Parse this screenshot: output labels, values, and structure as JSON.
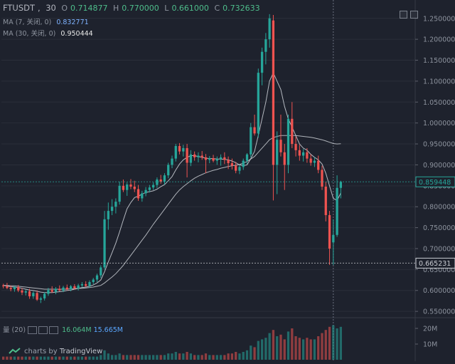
{
  "header": {
    "symbol": "FTUSDT",
    "interval": "30",
    "o_label": "O",
    "o_value": "0.714877",
    "h_label": "H",
    "h_value": "0.770000",
    "l_label": "L",
    "l_value": "0.661000",
    "c_label": "C",
    "c_value": "0.732633",
    "ma7_label": "MA (7, 关闭, 0)",
    "ma7_value": "0.832771",
    "ma30_label": "MA (30, 关闭, 0)",
    "ma30_value": "0.950444"
  },
  "volume_header": {
    "label": "量 (20)",
    "value_a": "16.064M",
    "value_b": "15.665M"
  },
  "watermark": {
    "prefix": "charts by",
    "brand": "TradingView"
  },
  "colors": {
    "background": "#1e222d",
    "up": "#26a69a",
    "down": "#ef5350",
    "ma7": "#d0d3da",
    "ma30": "#c9ccd2",
    "grid": "#2a2e39",
    "axis_text": "#8d939e",
    "price_label_bg": "#1e222d"
  },
  "chart_data": {
    "type": "candlestick",
    "y_axis_ticks": [
      "1.250000",
      "1.200000",
      "1.150000",
      "1.100000",
      "1.050000",
      "1.000000",
      "0.950000",
      "0.900000",
      "0.850000",
      "0.800000",
      "0.750000",
      "0.700000",
      "0.650000",
      "0.600000",
      "0.550000"
    ],
    "ylim": [
      0.54,
      1.27
    ],
    "price_labels": [
      {
        "value": 0.859448,
        "text": "0.859448",
        "color": "#26a69a"
      },
      {
        "value": 0.665231,
        "text": "0.665231",
        "color": "#c9ccd2"
      }
    ],
    "volume_axis_ticks": [
      "20M",
      "10M"
    ],
    "volume_ylim": [
      0,
      25
    ],
    "candles": [
      [
        0.612,
        0.616,
        0.605,
        0.61
      ],
      [
        0.61,
        0.618,
        0.603,
        0.606
      ],
      [
        0.606,
        0.612,
        0.598,
        0.603
      ],
      [
        0.603,
        0.611,
        0.597,
        0.608
      ],
      [
        0.608,
        0.613,
        0.596,
        0.6
      ],
      [
        0.6,
        0.606,
        0.589,
        0.595
      ],
      [
        0.595,
        0.602,
        0.588,
        0.598
      ],
      [
        0.598,
        0.604,
        0.58,
        0.586
      ],
      [
        0.586,
        0.598,
        0.58,
        0.594
      ],
      [
        0.594,
        0.6,
        0.575,
        0.578
      ],
      [
        0.578,
        0.585,
        0.57,
        0.581
      ],
      [
        0.581,
        0.596,
        0.576,
        0.592
      ],
      [
        0.592,
        0.606,
        0.587,
        0.601
      ],
      [
        0.601,
        0.61,
        0.594,
        0.597
      ],
      [
        0.597,
        0.608,
        0.591,
        0.604
      ],
      [
        0.604,
        0.612,
        0.598,
        0.6
      ],
      [
        0.6,
        0.611,
        0.596,
        0.607
      ],
      [
        0.607,
        0.614,
        0.6,
        0.603
      ],
      [
        0.603,
        0.613,
        0.598,
        0.61
      ],
      [
        0.61,
        0.615,
        0.602,
        0.605
      ],
      [
        0.605,
        0.616,
        0.6,
        0.612
      ],
      [
        0.612,
        0.62,
        0.607,
        0.615
      ],
      [
        0.615,
        0.622,
        0.608,
        0.611
      ],
      [
        0.611,
        0.624,
        0.606,
        0.62
      ],
      [
        0.62,
        0.63,
        0.615,
        0.626
      ],
      [
        0.626,
        0.64,
        0.62,
        0.636
      ],
      [
        0.636,
        0.66,
        0.63,
        0.655
      ],
      [
        0.655,
        0.79,
        0.65,
        0.77
      ],
      [
        0.77,
        0.81,
        0.745,
        0.79
      ],
      [
        0.79,
        0.818,
        0.78,
        0.8
      ],
      [
        0.8,
        0.82,
        0.784,
        0.812
      ],
      [
        0.812,
        0.86,
        0.805,
        0.85
      ],
      [
        0.85,
        0.865,
        0.835,
        0.84
      ],
      [
        0.84,
        0.858,
        0.826,
        0.853
      ],
      [
        0.853,
        0.866,
        0.842,
        0.848
      ],
      [
        0.848,
        0.862,
        0.835,
        0.842
      ],
      [
        0.842,
        0.852,
        0.814,
        0.82
      ],
      [
        0.82,
        0.838,
        0.812,
        0.832
      ],
      [
        0.832,
        0.847,
        0.825,
        0.84
      ],
      [
        0.84,
        0.852,
        0.834,
        0.846
      ],
      [
        0.846,
        0.858,
        0.84,
        0.852
      ],
      [
        0.852,
        0.87,
        0.845,
        0.865
      ],
      [
        0.865,
        0.876,
        0.855,
        0.86
      ],
      [
        0.86,
        0.88,
        0.853,
        0.875
      ],
      [
        0.875,
        0.905,
        0.868,
        0.9
      ],
      [
        0.9,
        0.922,
        0.892,
        0.915
      ],
      [
        0.915,
        0.95,
        0.908,
        0.945
      ],
      [
        0.945,
        0.952,
        0.925,
        0.932
      ],
      [
        0.932,
        0.948,
        0.92,
        0.94
      ],
      [
        0.94,
        0.95,
        0.87,
        0.905
      ],
      [
        0.905,
        0.935,
        0.897,
        0.925
      ],
      [
        0.925,
        0.932,
        0.91,
        0.918
      ],
      [
        0.918,
        0.93,
        0.906,
        0.922
      ],
      [
        0.922,
        0.933,
        0.912,
        0.918
      ],
      [
        0.918,
        0.926,
        0.88,
        0.912
      ],
      [
        0.912,
        0.921,
        0.904,
        0.916
      ],
      [
        0.916,
        0.924,
        0.906,
        0.91
      ],
      [
        0.91,
        0.92,
        0.9,
        0.914
      ],
      [
        0.914,
        0.925,
        0.898,
        0.918
      ],
      [
        0.918,
        0.93,
        0.902,
        0.912
      ],
      [
        0.912,
        0.92,
        0.89,
        0.904
      ],
      [
        0.904,
        0.915,
        0.889,
        0.898
      ],
      [
        0.898,
        0.907,
        0.88,
        0.886
      ],
      [
        0.886,
        0.9,
        0.878,
        0.895
      ],
      [
        0.895,
        0.915,
        0.888,
        0.91
      ],
      [
        0.91,
        0.928,
        0.902,
        0.925
      ],
      [
        0.925,
        1.0,
        0.918,
        0.99
      ],
      [
        0.99,
        1.02,
        0.97,
        0.975
      ],
      [
        0.975,
        1.13,
        0.965,
        1.12
      ],
      [
        1.12,
        1.18,
        1.09,
        1.17
      ],
      [
        1.17,
        1.215,
        1.14,
        1.2
      ],
      [
        1.2,
        1.26,
        1.18,
        1.25
      ],
      [
        1.245,
        1.258,
        0.815,
        0.9
      ],
      [
        0.9,
        0.98,
        0.83,
        0.96
      ],
      [
        0.96,
        1.02,
        0.92,
        0.93
      ],
      [
        0.93,
        0.95,
        0.84,
        0.9
      ],
      [
        0.9,
        1.02,
        0.88,
        1.01
      ],
      [
        1.01,
        1.05,
        0.94,
        0.95
      ],
      [
        0.95,
        0.968,
        0.92,
        0.935
      ],
      [
        0.935,
        0.948,
        0.91,
        0.922
      ],
      [
        0.922,
        0.938,
        0.908,
        0.93
      ],
      [
        0.93,
        0.94,
        0.905,
        0.915
      ],
      [
        0.915,
        0.925,
        0.898,
        0.905
      ],
      [
        0.905,
        0.918,
        0.895,
        0.91
      ],
      [
        0.91,
        0.922,
        0.88,
        0.888
      ],
      [
        0.888,
        0.898,
        0.84,
        0.848
      ],
      [
        0.848,
        0.86,
        0.765,
        0.78
      ],
      [
        0.78,
        0.79,
        0.661,
        0.7
      ],
      [
        0.714877,
        0.77,
        0.661,
        0.732633
      ],
      [
        0.732633,
        0.875,
        0.728,
        0.845
      ],
      [
        0.845,
        0.862,
        0.82,
        0.859448
      ]
    ],
    "volumes": [
      2,
      2,
      2,
      2,
      2,
      2,
      2,
      2,
      2,
      2,
      2,
      2,
      2,
      2,
      2,
      2,
      2,
      2,
      2,
      2,
      2,
      2,
      2,
      2,
      2,
      2,
      3,
      6,
      4,
      3,
      3,
      4,
      3,
      3,
      3,
      3,
      3,
      3,
      3,
      3,
      3,
      3,
      3,
      3,
      4,
      4,
      5,
      4,
      4,
      5,
      4,
      3,
      3,
      3,
      4,
      3,
      3,
      3,
      3,
      3,
      4,
      4,
      5,
      4,
      5,
      6,
      9,
      8,
      12,
      13,
      14,
      17,
      19,
      15,
      16,
      13,
      18,
      20,
      15,
      14,
      13,
      14,
      13,
      13,
      15,
      17,
      19,
      21,
      22,
      20,
      21
    ],
    "ma7": [
      0.612,
      0.611,
      0.609,
      0.608,
      0.607,
      0.605,
      0.603,
      0.601,
      0.6,
      0.598,
      0.596,
      0.595,
      0.595,
      0.595,
      0.596,
      0.597,
      0.598,
      0.6,
      0.601,
      0.603,
      0.605,
      0.607,
      0.608,
      0.61,
      0.613,
      0.618,
      0.625,
      0.645,
      0.668,
      0.69,
      0.713,
      0.74,
      0.768,
      0.795,
      0.81,
      0.822,
      0.825,
      0.83,
      0.834,
      0.836,
      0.838,
      0.842,
      0.848,
      0.853,
      0.862,
      0.872,
      0.888,
      0.902,
      0.912,
      0.918,
      0.922,
      0.922,
      0.92,
      0.918,
      0.916,
      0.915,
      0.915,
      0.914,
      0.914,
      0.913,
      0.912,
      0.909,
      0.905,
      0.9,
      0.898,
      0.9,
      0.915,
      0.932,
      0.97,
      1.01,
      1.05,
      1.1,
      1.12,
      1.1,
      1.08,
      1.04,
      1.01,
      0.99,
      0.97,
      0.95,
      0.94,
      0.935,
      0.925,
      0.918,
      0.912,
      0.902,
      0.88,
      0.85,
      0.82,
      0.815,
      0.832771
    ],
    "ma30": [
      0.612,
      0.612,
      0.611,
      0.611,
      0.61,
      0.609,
      0.608,
      0.607,
      0.606,
      0.605,
      0.604,
      0.603,
      0.603,
      0.603,
      0.603,
      0.603,
      0.603,
      0.603,
      0.604,
      0.604,
      0.605,
      0.605,
      0.606,
      0.607,
      0.608,
      0.61,
      0.612,
      0.618,
      0.625,
      0.632,
      0.64,
      0.65,
      0.66,
      0.672,
      0.684,
      0.696,
      0.708,
      0.72,
      0.732,
      0.745,
      0.758,
      0.77,
      0.782,
      0.794,
      0.806,
      0.818,
      0.83,
      0.84,
      0.848,
      0.855,
      0.862,
      0.868,
      0.873,
      0.877,
      0.881,
      0.884,
      0.887,
      0.889,
      0.892,
      0.894,
      0.896,
      0.898,
      0.899,
      0.901,
      0.904,
      0.908,
      0.914,
      0.92,
      0.93,
      0.94,
      0.95,
      0.96,
      0.965,
      0.968,
      0.97,
      0.97,
      0.97,
      0.97,
      0.97,
      0.969,
      0.968,
      0.967,
      0.966,
      0.964,
      0.962,
      0.96,
      0.957,
      0.954,
      0.951,
      0.95,
      0.950444
    ]
  }
}
